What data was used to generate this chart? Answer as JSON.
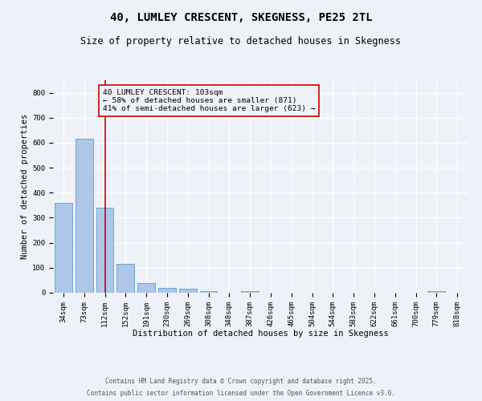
{
  "title": "40, LUMLEY CRESCENT, SKEGNESS, PE25 2TL",
  "subtitle": "Size of property relative to detached houses in Skegness",
  "xlabel": "Distribution of detached houses by size in Skegness",
  "ylabel": "Number of detached properties",
  "bin_labels": [
    "34sqm",
    "73sqm",
    "112sqm",
    "152sqm",
    "191sqm",
    "230sqm",
    "269sqm",
    "308sqm",
    "348sqm",
    "387sqm",
    "426sqm",
    "465sqm",
    "504sqm",
    "544sqm",
    "583sqm",
    "622sqm",
    "661sqm",
    "700sqm",
    "779sqm",
    "818sqm"
  ],
  "bar_heights": [
    360,
    615,
    340,
    115,
    40,
    20,
    15,
    8,
    0,
    8,
    0,
    0,
    0,
    0,
    0,
    0,
    0,
    0,
    5,
    0
  ],
  "bar_color": "#aec6e8",
  "bar_edgecolor": "#5a9fd4",
  "property_line_x": 2,
  "property_line_color": "#cc0000",
  "annotation_text": "40 LUMLEY CRESCENT: 103sqm\n← 58% of detached houses are smaller (871)\n41% of semi-detached houses are larger (623) →",
  "annotation_box_color": "#cc0000",
  "annotation_text_color": "#000000",
  "ylim": [
    0,
    850
  ],
  "yticks": [
    0,
    100,
    200,
    300,
    400,
    500,
    600,
    700,
    800
  ],
  "footnote1": "Contains HM Land Registry data © Crown copyright and database right 2025.",
  "footnote2": "Contains public sector information licensed under the Open Government Licence v3.0.",
  "background_color": "#eef2f8",
  "grid_color": "#ffffff",
  "title_fontsize": 10,
  "subtitle_fontsize": 8.5,
  "label_fontsize": 7.5,
  "tick_fontsize": 6.5,
  "footnote_fontsize": 5.5,
  "annotation_fontsize": 6.8
}
